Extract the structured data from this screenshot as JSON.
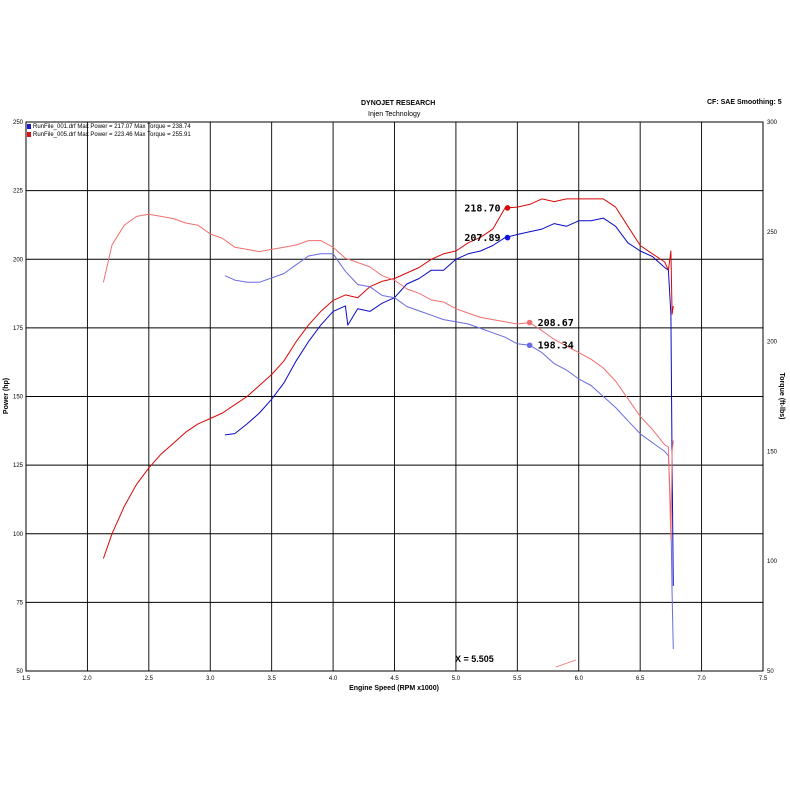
{
  "header": {
    "title": "DYNOJET RESEARCH",
    "subtitle": "Injen Technology",
    "settings": "CF: SAE  Smoothing: 5"
  },
  "legend": [
    {
      "text": "RunFile_001.drf Max Power = 217.07     Max Torque = 238.74",
      "color": "#1a1acc"
    },
    {
      "text": "RunFile_005.drf Max Power = 223.46     Max Torque = 255.91",
      "color": "#dd1111"
    }
  ],
  "cursor_label": "X = 5.505",
  "colors": {
    "run1": "#0a0ac8",
    "run1_torque": "#6a6ae0",
    "run5": "#d80808",
    "run5_torque": "#f07070"
  },
  "chart_data": {
    "type": "line",
    "xlabel": "Engine Speed (RPM x1000)",
    "ylabel": "Power (hp)",
    "y2label": "Torque (ft-lbs)",
    "xlim": [
      1.5,
      7.5
    ],
    "ylim": [
      50,
      250
    ],
    "y2lim": [
      50,
      300
    ],
    "x_ticks": [
      "1.5",
      "2.0",
      "2.5",
      "3.0",
      "3.5",
      "4.0",
      "4.5",
      "5.0",
      "5.5",
      "6.0",
      "6.5",
      "7.0",
      "7.5"
    ],
    "y_ticks": [
      "50",
      "75",
      "100",
      "125",
      "150",
      "175",
      "200",
      "225",
      "250"
    ],
    "y2_ticks": [
      "50",
      "100",
      "150",
      "200",
      "250",
      "300"
    ],
    "grid": true,
    "series": [
      {
        "name": "RunFile_001.drf",
        "axis": "power",
        "color": "#0a0ac8",
        "points": [
          [
            3.12,
            136
          ],
          [
            3.2,
            136.5
          ],
          [
            3.3,
            140
          ],
          [
            3.4,
            144
          ],
          [
            3.5,
            149
          ],
          [
            3.6,
            155
          ],
          [
            3.7,
            163
          ],
          [
            3.8,
            170
          ],
          [
            3.9,
            176
          ],
          [
            4.0,
            181
          ],
          [
            4.1,
            183
          ],
          [
            4.12,
            176
          ],
          [
            4.2,
            182
          ],
          [
            4.3,
            181
          ],
          [
            4.4,
            184
          ],
          [
            4.5,
            186
          ],
          [
            4.6,
            191
          ],
          [
            4.7,
            193
          ],
          [
            4.8,
            196
          ],
          [
            4.9,
            196
          ],
          [
            5.0,
            200
          ],
          [
            5.1,
            202
          ],
          [
            5.2,
            203
          ],
          [
            5.3,
            205
          ],
          [
            5.4,
            207.89
          ],
          [
            5.5,
            209
          ],
          [
            5.6,
            210
          ],
          [
            5.7,
            211
          ],
          [
            5.8,
            213
          ],
          [
            5.9,
            212
          ],
          [
            6.0,
            214
          ],
          [
            6.1,
            214
          ],
          [
            6.2,
            215
          ],
          [
            6.3,
            212
          ],
          [
            6.4,
            206
          ],
          [
            6.5,
            203
          ],
          [
            6.6,
            201
          ],
          [
            6.7,
            197
          ],
          [
            6.73,
            196
          ],
          [
            6.75,
            180
          ],
          [
            6.76,
            125
          ],
          [
            6.77,
            81
          ]
        ]
      },
      {
        "name": "RunFile_005.drf",
        "axis": "power",
        "color": "#d80808",
        "points": [
          [
            2.13,
            91
          ],
          [
            2.2,
            100
          ],
          [
            2.3,
            110
          ],
          [
            2.4,
            118
          ],
          [
            2.5,
            124
          ],
          [
            2.6,
            129
          ],
          [
            2.7,
            133
          ],
          [
            2.8,
            137
          ],
          [
            2.9,
            140
          ],
          [
            3.0,
            142
          ],
          [
            3.1,
            144
          ],
          [
            3.2,
            147
          ],
          [
            3.3,
            150
          ],
          [
            3.4,
            154
          ],
          [
            3.5,
            158
          ],
          [
            3.6,
            163
          ],
          [
            3.7,
            170
          ],
          [
            3.8,
            176
          ],
          [
            3.9,
            181
          ],
          [
            4.0,
            185
          ],
          [
            4.1,
            187
          ],
          [
            4.2,
            186
          ],
          [
            4.3,
            190
          ],
          [
            4.4,
            192
          ],
          [
            4.5,
            193
          ],
          [
            4.6,
            195
          ],
          [
            4.7,
            197
          ],
          [
            4.8,
            200
          ],
          [
            4.9,
            202
          ],
          [
            5.0,
            203
          ],
          [
            5.1,
            206
          ],
          [
            5.2,
            208
          ],
          [
            5.3,
            211
          ],
          [
            5.4,
            218.7
          ],
          [
            5.5,
            219
          ],
          [
            5.6,
            220
          ],
          [
            5.7,
            222
          ],
          [
            5.8,
            221
          ],
          [
            5.9,
            222
          ],
          [
            6.0,
            222
          ],
          [
            6.1,
            222
          ],
          [
            6.2,
            222
          ],
          [
            6.3,
            219
          ],
          [
            6.4,
            212
          ],
          [
            6.5,
            205
          ],
          [
            6.6,
            202
          ],
          [
            6.7,
            199
          ],
          [
            6.73,
            196
          ],
          [
            6.75,
            203
          ],
          [
            6.76,
            180
          ],
          [
            6.77,
            183
          ]
        ]
      },
      {
        "name": "RunFile_001.drf",
        "axis": "torque",
        "color": "#6a6ae0",
        "points": [
          [
            3.12,
            230
          ],
          [
            3.2,
            228
          ],
          [
            3.3,
            227
          ],
          [
            3.4,
            227
          ],
          [
            3.5,
            229
          ],
          [
            3.6,
            231
          ],
          [
            3.7,
            235
          ],
          [
            3.8,
            239
          ],
          [
            3.9,
            240
          ],
          [
            4.0,
            240
          ],
          [
            4.1,
            232
          ],
          [
            4.2,
            226
          ],
          [
            4.3,
            225
          ],
          [
            4.4,
            221
          ],
          [
            4.5,
            220
          ],
          [
            4.6,
            216
          ],
          [
            4.7,
            214
          ],
          [
            4.8,
            212
          ],
          [
            4.9,
            210
          ],
          [
            5.0,
            209
          ],
          [
            5.1,
            208
          ],
          [
            5.2,
            206
          ],
          [
            5.3,
            204
          ],
          [
            5.4,
            202
          ],
          [
            5.5,
            199
          ],
          [
            5.6,
            198.34
          ],
          [
            5.7,
            195
          ],
          [
            5.8,
            190
          ],
          [
            5.9,
            187
          ],
          [
            6.0,
            183
          ],
          [
            6.1,
            180
          ],
          [
            6.2,
            175
          ],
          [
            6.3,
            170
          ],
          [
            6.4,
            164
          ],
          [
            6.5,
            158
          ],
          [
            6.6,
            154
          ],
          [
            6.7,
            150
          ],
          [
            6.73,
            148
          ],
          [
            6.75,
            120
          ],
          [
            6.76,
            85
          ],
          [
            6.77,
            60
          ]
        ]
      },
      {
        "name": "RunFile_005.drf",
        "axis": "torque",
        "color": "#f07070",
        "points": [
          [
            2.13,
            227
          ],
          [
            2.2,
            244
          ],
          [
            2.3,
            253
          ],
          [
            2.4,
            257
          ],
          [
            2.5,
            258
          ],
          [
            2.6,
            257
          ],
          [
            2.7,
            256
          ],
          [
            2.8,
            254
          ],
          [
            2.9,
            253
          ],
          [
            3.0,
            249
          ],
          [
            3.1,
            247
          ],
          [
            3.2,
            243
          ],
          [
            3.3,
            242
          ],
          [
            3.4,
            241
          ],
          [
            3.5,
            242
          ],
          [
            3.6,
            243
          ],
          [
            3.7,
            244
          ],
          [
            3.8,
            246
          ],
          [
            3.9,
            246
          ],
          [
            4.0,
            243
          ],
          [
            4.1,
            238
          ],
          [
            4.2,
            236
          ],
          [
            4.3,
            234
          ],
          [
            4.4,
            230
          ],
          [
            4.5,
            228
          ],
          [
            4.6,
            224
          ],
          [
            4.7,
            222
          ],
          [
            4.8,
            219
          ],
          [
            4.9,
            218
          ],
          [
            5.0,
            215
          ],
          [
            5.1,
            213
          ],
          [
            5.2,
            211
          ],
          [
            5.3,
            210
          ],
          [
            5.4,
            209
          ],
          [
            5.5,
            208
          ],
          [
            5.6,
            208.67
          ],
          [
            5.7,
            205
          ],
          [
            5.8,
            201
          ],
          [
            5.9,
            198
          ],
          [
            6.0,
            195
          ],
          [
            6.1,
            192
          ],
          [
            6.2,
            188
          ],
          [
            6.3,
            182
          ],
          [
            6.4,
            174
          ],
          [
            6.5,
            166
          ],
          [
            6.6,
            160
          ],
          [
            6.7,
            153
          ],
          [
            6.73,
            152
          ],
          [
            6.75,
            110
          ],
          [
            6.76,
            150
          ],
          [
            6.77,
            155
          ]
        ]
      }
    ],
    "markers": [
      {
        "label": "218.70",
        "x": 5.42,
        "y": 218.7,
        "axis": "power",
        "color": "#d80808"
      },
      {
        "label": "207.89",
        "x": 5.42,
        "y": 207.89,
        "axis": "power",
        "color": "#1010e0"
      },
      {
        "label": "208.67",
        "x": 5.6,
        "y": 208.67,
        "axis": "torque",
        "color": "#f07070"
      },
      {
        "label": "198.34",
        "x": 5.6,
        "y": 198.34,
        "axis": "torque",
        "color": "#6a6ae0"
      }
    ]
  }
}
